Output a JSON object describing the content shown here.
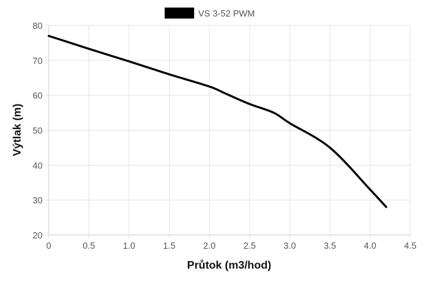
{
  "chart_data": {
    "type": "line",
    "xlabel": "Průtok (m3/hod)",
    "ylabel": "Výtlak (m)",
    "xlim": [
      0,
      4.5
    ],
    "ylim": [
      20,
      80
    ],
    "x_ticks": [
      "0",
      "0.5",
      "1.0",
      "1.5",
      "2.0",
      "2.5",
      "3.0",
      "3.5",
      "4.0",
      "4.5"
    ],
    "y_ticks": [
      "20",
      "30",
      "40",
      "50",
      "60",
      "70",
      "80"
    ],
    "grid": true,
    "legend_position": "top",
    "series": [
      {
        "name": "VS 3-52 PWM",
        "color": "#000000",
        "x": [
          0,
          0.5,
          1.0,
          1.5,
          2.0,
          2.2,
          2.5,
          2.8,
          3.0,
          3.5,
          4.0,
          4.2
        ],
        "y": [
          77,
          73.3,
          69.7,
          66,
          62.5,
          60.5,
          57.5,
          55,
          52,
          45,
          33,
          28
        ]
      }
    ]
  }
}
